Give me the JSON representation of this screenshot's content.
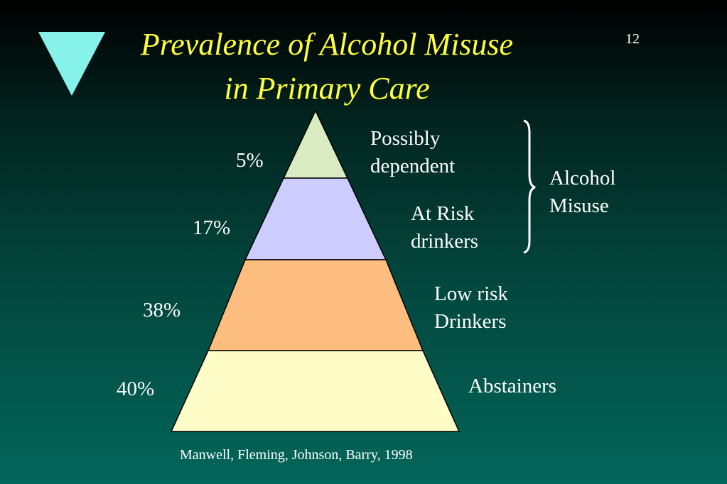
{
  "slide": {
    "title_line1": "Prevalence of Alcohol Misuse",
    "title_line2": "in Primary Care",
    "page_number": "12",
    "citation": "Manwell, Fleming, Johnson, Barry, 1998"
  },
  "pyramid": {
    "tiers": [
      {
        "percent": "5%",
        "label_line1": "Possibly",
        "label_line2": "dependent",
        "color": "#d9ebc0"
      },
      {
        "percent": "17%",
        "label_line1": "At Risk",
        "label_line2": "drinkers",
        "color": "#ccccfe"
      },
      {
        "percent": "38%",
        "label_line1": "Low risk",
        "label_line2": "Drinkers",
        "color": "#fcbd7f"
      },
      {
        "percent": "40%",
        "label_line1": "Abstainers",
        "color": "#fefdc8"
      }
    ],
    "bracket_label_line1": "Alcohol",
    "bracket_label_line2": "Misuse"
  },
  "colors": {
    "title": "#ffff3c",
    "triangle_icon": "#86f2ea"
  }
}
